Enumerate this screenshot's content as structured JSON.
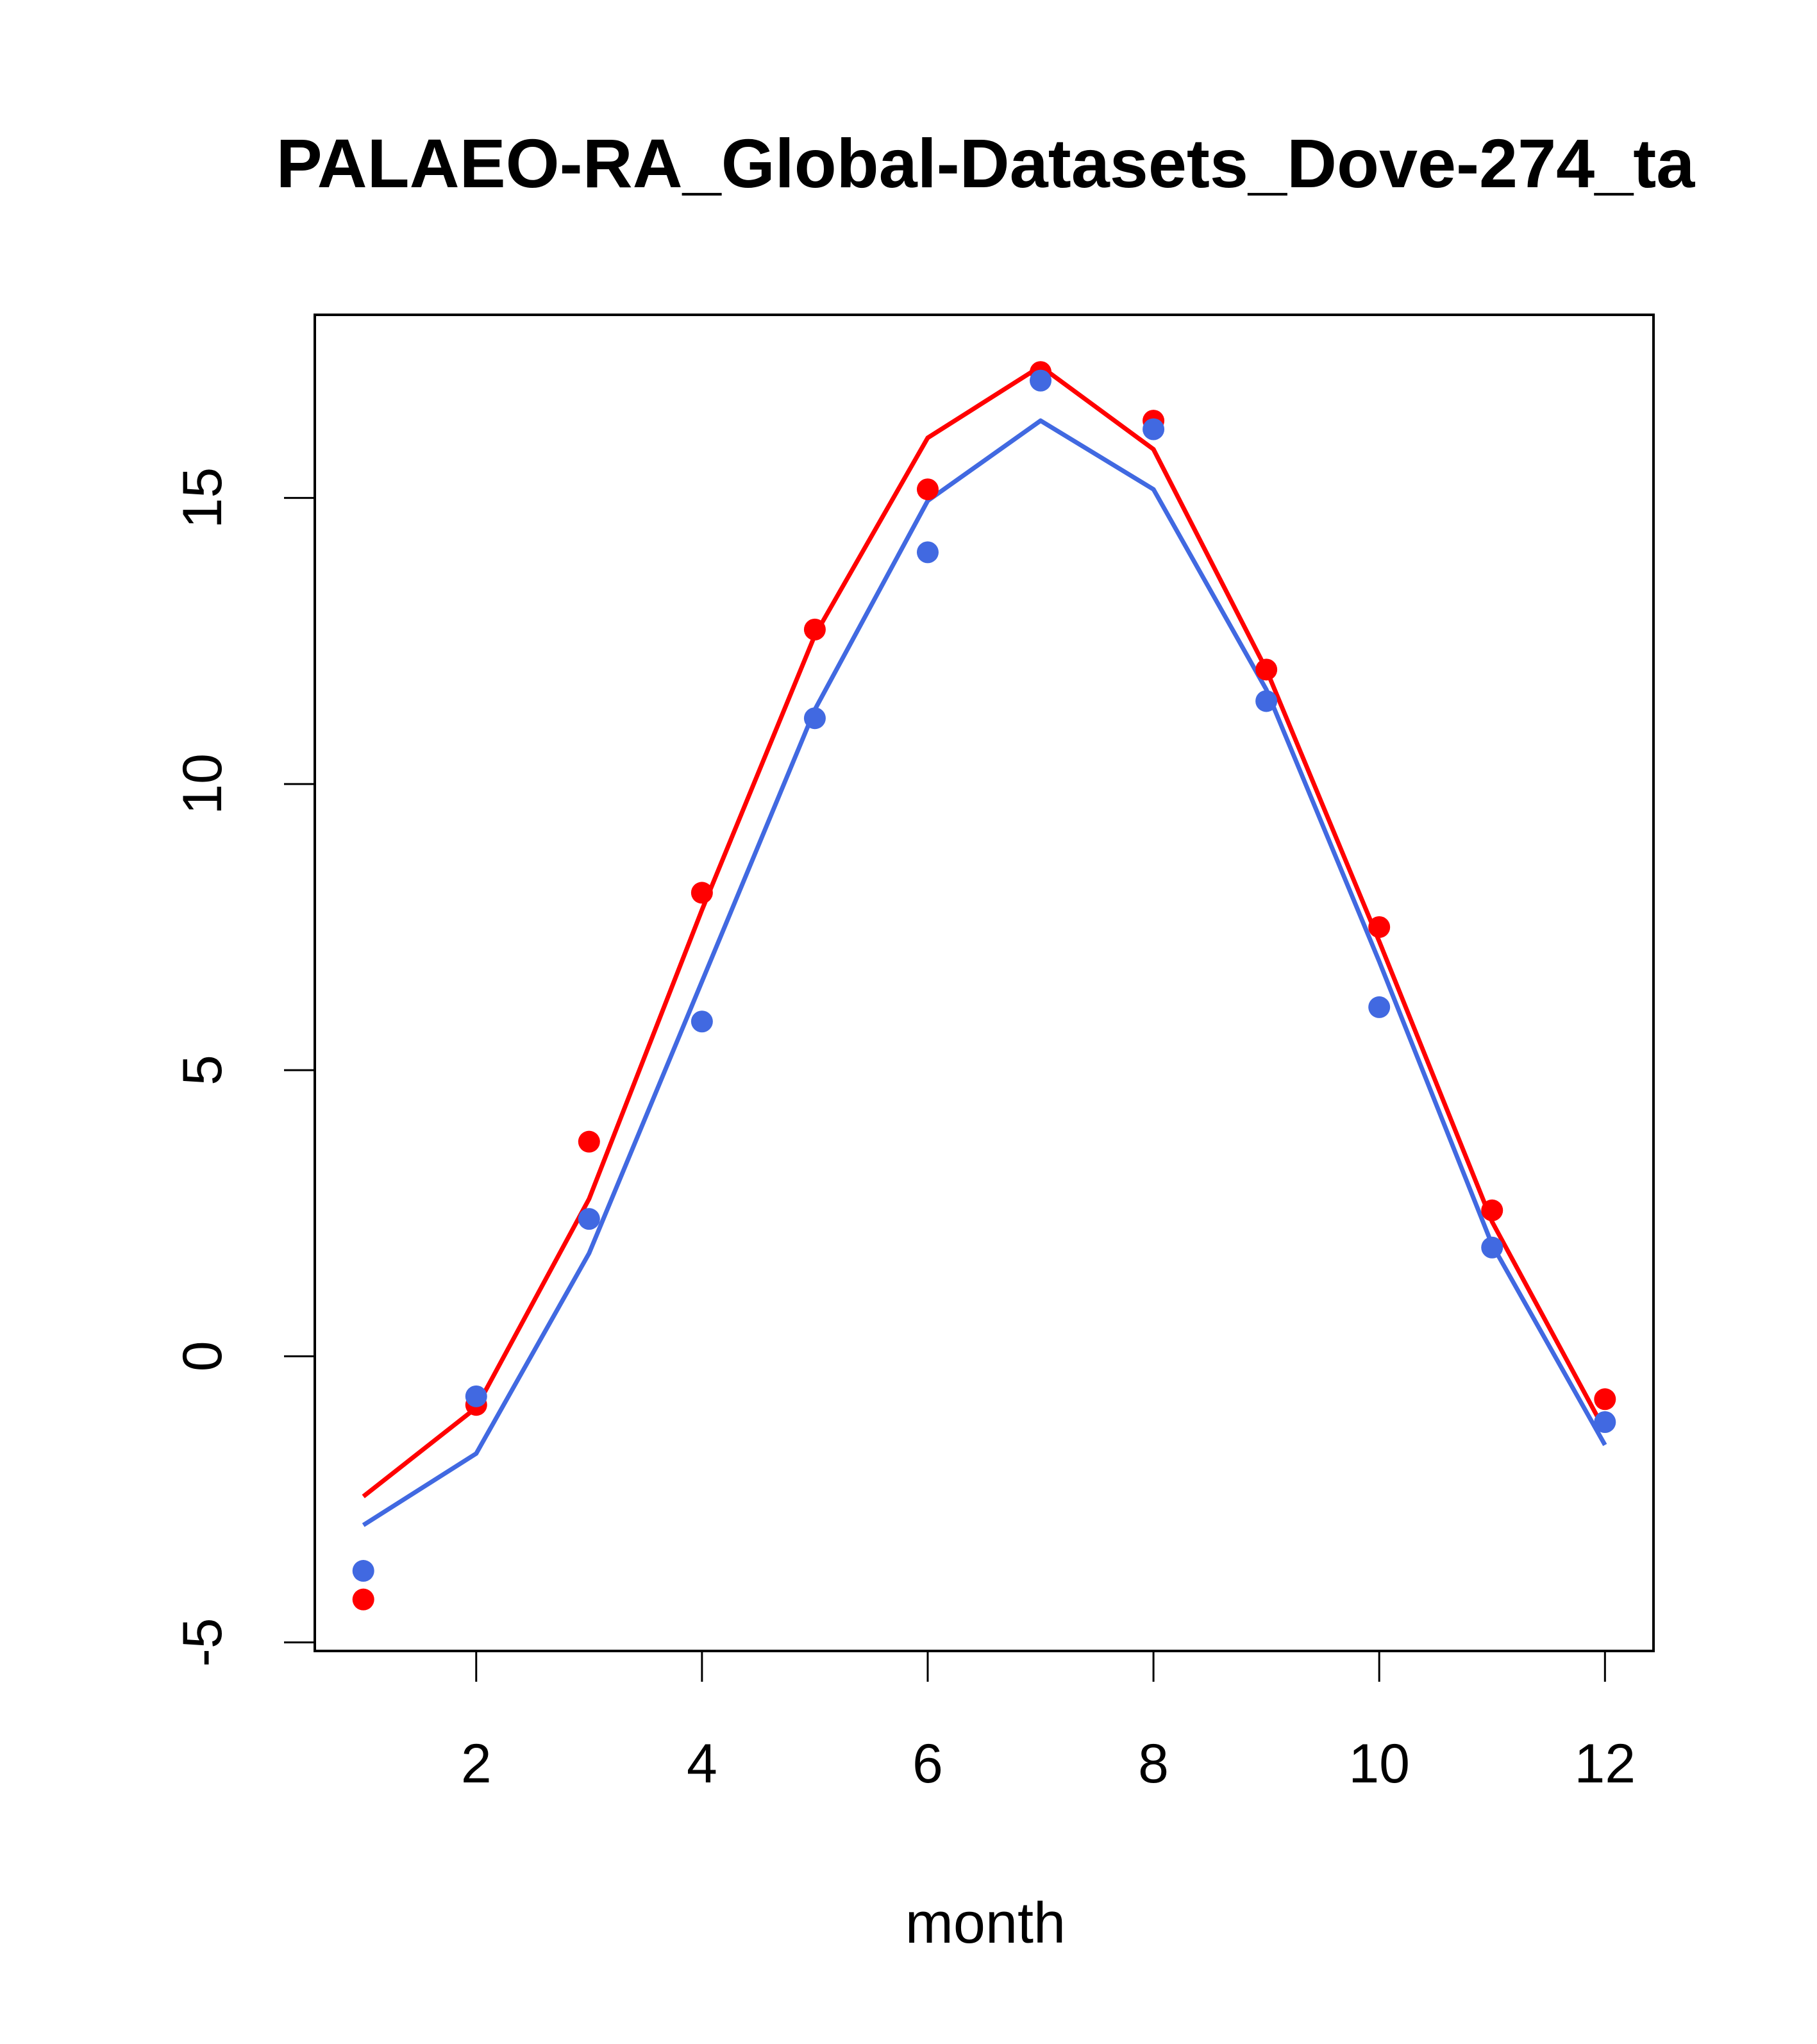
{
  "chart_data": {
    "type": "line",
    "title": "PALAEO-RA_Global-Datasets_Dove-274_ta",
    "xlabel": "month",
    "ylabel": "",
    "xlim": [
      0.57,
      12.43
    ],
    "ylim": [
      -5.15,
      18.2
    ],
    "x": [
      1,
      2,
      3,
      4,
      5,
      6,
      7,
      8,
      9,
      10,
      11,
      12
    ],
    "xticks": [
      2,
      4,
      6,
      8,
      10,
      12
    ],
    "xtick_labels": [
      "2",
      "4",
      "6",
      "8",
      "10",
      "12"
    ],
    "yticks": [
      -5,
      0,
      5,
      10,
      15
    ],
    "ytick_labels": [
      "-5",
      "0",
      "5",
      "10",
      "15"
    ],
    "grid": false,
    "series": [
      {
        "name": "red line",
        "color": "#ff0000",
        "kind": "line",
        "values": [
          -2.45,
          -0.9,
          2.75,
          7.8,
          12.6,
          16.05,
          17.3,
          15.85,
          12.0,
          7.25,
          2.35,
          -1.3
        ]
      },
      {
        "name": "blue line",
        "color": "#4169e1",
        "kind": "line",
        "values": [
          -2.95,
          -1.7,
          1.8,
          6.55,
          11.3,
          14.95,
          16.35,
          15.15,
          11.65,
          6.9,
          1.95,
          -1.55
        ]
      },
      {
        "name": "red points",
        "color": "#ff0000",
        "kind": "points",
        "values": [
          -4.25,
          -0.85,
          3.75,
          8.1,
          12.7,
          15.15,
          17.2,
          16.35,
          12.0,
          7.5,
          2.55,
          -0.75
        ]
      },
      {
        "name": "blue points",
        "color": "#4169e1",
        "kind": "points",
        "values": [
          -3.75,
          -0.7,
          2.4,
          5.85,
          11.15,
          14.05,
          17.05,
          16.2,
          11.45,
          6.1,
          1.9,
          -1.15
        ]
      }
    ]
  }
}
